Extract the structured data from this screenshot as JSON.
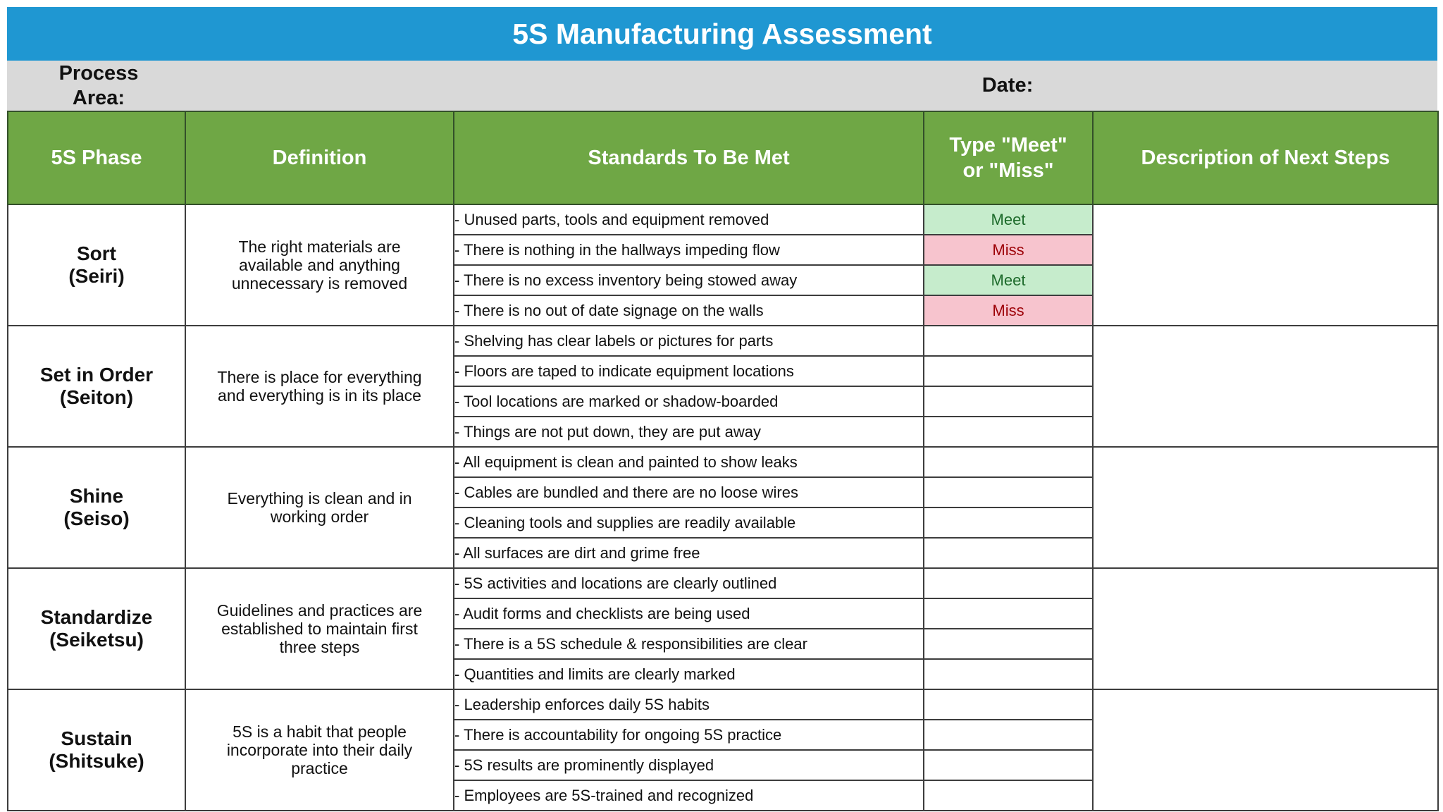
{
  "title": "5S Manufacturing Assessment",
  "info": {
    "process_area_line1": "Process",
    "process_area_line2": "Area:",
    "date_label": "Date:"
  },
  "headers": {
    "phase": "5S Phase",
    "definition": "Definition",
    "standards": "Standards To Be Met",
    "type_line1": "Type \"Meet\"",
    "type_line2": "or \"Miss\"",
    "next_steps": "Description of Next Steps"
  },
  "colors": {
    "title_bar": "#1f97d2",
    "header_green": "#6fa745",
    "meet_fill": "#c6eccc",
    "miss_fill": "#f7c4ce"
  },
  "sections": [
    {
      "phase_line1": "Sort",
      "phase_line2": "(Seiri)",
      "definition_lines": [
        "The right materials are",
        "available and anything",
        "unnecessary is removed"
      ],
      "standards": [
        {
          "text": "- Unused parts, tools and equipment removed",
          "status": "Meet"
        },
        {
          "text": "- There is nothing in the hallways impeding flow",
          "status": "Miss"
        },
        {
          "text": "- There is no excess inventory being stowed away",
          "status": "Meet"
        },
        {
          "text": "- There is no out of date signage on the walls",
          "status": "Miss"
        }
      ]
    },
    {
      "phase_line1": "Set in Order",
      "phase_line2": "(Seiton)",
      "definition_lines": [
        "There is place for everything",
        "and everything is in its place"
      ],
      "standards": [
        {
          "text": "- Shelving has clear labels or pictures for parts",
          "status": ""
        },
        {
          "text": "- Floors are taped to indicate equipment locations",
          "status": ""
        },
        {
          "text": "- Tool locations are marked or shadow-boarded",
          "status": ""
        },
        {
          "text": "- Things are not put down, they are put away",
          "status": ""
        }
      ]
    },
    {
      "phase_line1": "Shine",
      "phase_line2": "(Seiso)",
      "definition_lines": [
        "Everything is clean and in",
        "working order"
      ],
      "standards": [
        {
          "text": "- All equipment is clean and painted to show leaks",
          "status": ""
        },
        {
          "text": "- Cables are bundled and there are no loose wires",
          "status": ""
        },
        {
          "text": "- Cleaning tools and supplies are readily available",
          "status": ""
        },
        {
          "text": "- All surfaces are dirt and grime free",
          "status": ""
        }
      ]
    },
    {
      "phase_line1": "Standardize",
      "phase_line2": "(Seiketsu)",
      "definition_lines": [
        "Guidelines and practices are",
        "established to maintain first",
        "three steps"
      ],
      "standards": [
        {
          "text": "- 5S activities and locations are clearly outlined",
          "status": ""
        },
        {
          "text": "- Audit forms and checklists are being used",
          "status": ""
        },
        {
          "text": "- There is a 5S schedule & responsibilities are clear",
          "status": ""
        },
        {
          "text": "- Quantities and limits are clearly marked",
          "status": ""
        }
      ]
    },
    {
      "phase_line1": "Sustain",
      "phase_line2": "(Shitsuke)",
      "definition_lines": [
        "5S is a habit that people",
        "incorporate into their daily",
        "practice"
      ],
      "standards": [
        {
          "text": "- Leadership enforces daily 5S habits",
          "status": ""
        },
        {
          "text": "- There is accountability for ongoing 5S practice",
          "status": ""
        },
        {
          "text": "- 5S results are prominently displayed",
          "status": ""
        },
        {
          "text": "- Employees are 5S-trained and recognized",
          "status": ""
        }
      ]
    }
  ]
}
